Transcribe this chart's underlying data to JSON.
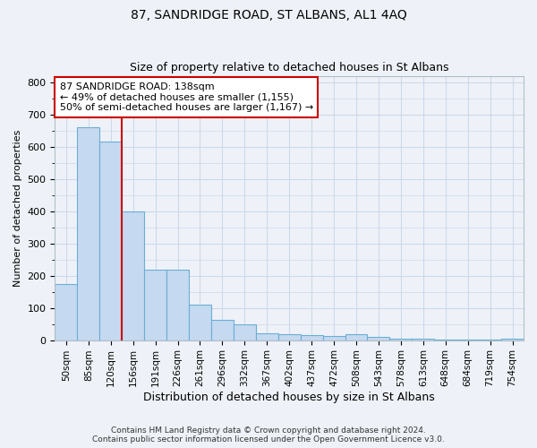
{
  "title": "87, SANDRIDGE ROAD, ST ALBANS, AL1 4AQ",
  "subtitle": "Size of property relative to detached houses in St Albans",
  "xlabel": "Distribution of detached houses by size in St Albans",
  "ylabel": "Number of detached properties",
  "categories": [
    "50sqm",
    "85sqm",
    "120sqm",
    "156sqm",
    "191sqm",
    "226sqm",
    "261sqm",
    "296sqm",
    "332sqm",
    "367sqm",
    "402sqm",
    "437sqm",
    "472sqm",
    "508sqm",
    "543sqm",
    "578sqm",
    "613sqm",
    "648sqm",
    "684sqm",
    "719sqm",
    "754sqm"
  ],
  "values": [
    175,
    660,
    615,
    400,
    218,
    218,
    110,
    62,
    48,
    22,
    18,
    15,
    13,
    18,
    10,
    5,
    4,
    3,
    2,
    2,
    5
  ],
  "bar_color": "#c5d9f0",
  "bar_edge_color": "#6baed6",
  "grid_color": "#ccd9ea",
  "background_color": "#eef2f8",
  "vline_x": 3,
  "vline_color": "#cc0000",
  "annotation_line1": "87 SANDRIDGE ROAD: 138sqm",
  "annotation_line2": "← 49% of detached houses are smaller (1,155)",
  "annotation_line3": "50% of semi-detached houses are larger (1,167) →",
  "annotation_box_color": "#ffffff",
  "annotation_box_edge": "#cc0000",
  "ylim": [
    0,
    820
  ],
  "yticks": [
    0,
    100,
    200,
    300,
    400,
    500,
    600,
    700,
    800
  ],
  "footer_line1": "Contains HM Land Registry data © Crown copyright and database right 2024.",
  "footer_line2": "Contains public sector information licensed under the Open Government Licence v3.0."
}
